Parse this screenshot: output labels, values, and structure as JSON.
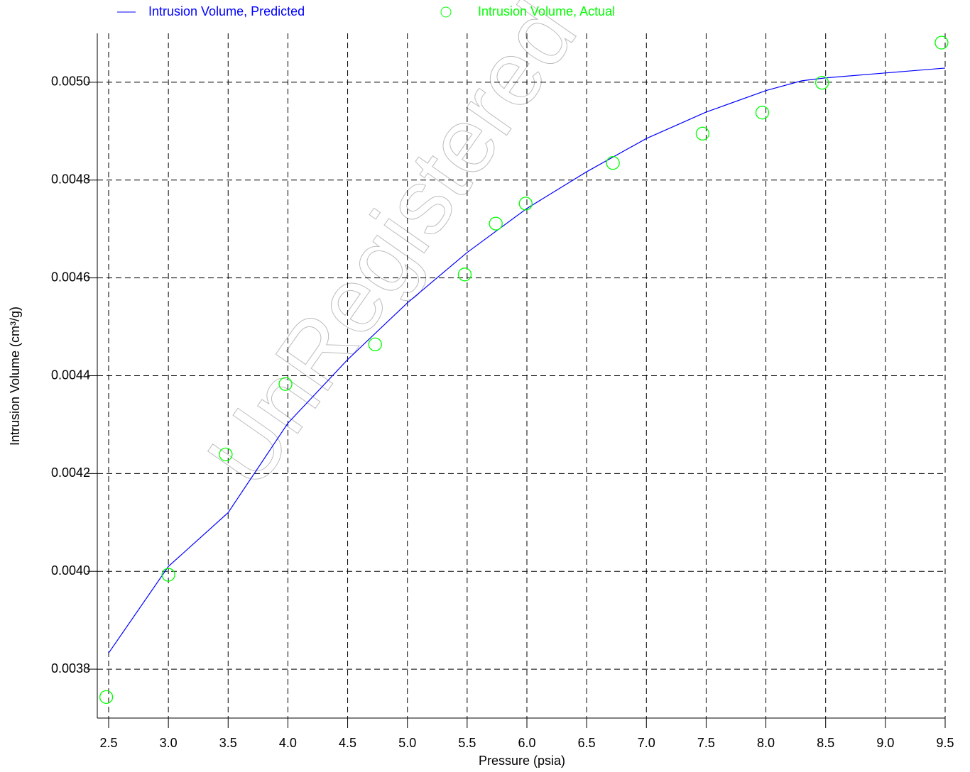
{
  "chart_data": {
    "type": "scatter",
    "watermark": "UnRegistered",
    "x_label": "Pressure (psia)",
    "y_label": "Intrusion Volume (cm³/g)",
    "xlim": [
      2.405,
      9.5
    ],
    "ylim": [
      0.0037,
      0.0051
    ],
    "xticks": [
      2.5,
      {
        "value": 3,
        "label": "3.0"
      },
      3.5,
      {
        "value": 4,
        "label": "4.0"
      },
      4.5,
      {
        "value": 5,
        "label": "5.0"
      },
      5.5,
      {
        "value": 6,
        "label": "6.0"
      },
      6.5,
      {
        "value": 7,
        "label": "7.0"
      },
      7.5,
      {
        "value": 8,
        "label": "8.0"
      },
      8.5,
      {
        "value": 9,
        "label": "9.0"
      },
      9.5
    ],
    "yticks": [
      0.0038,
      {
        "value": 0.004,
        "label": "0.0040"
      },
      0.0042,
      0.0044,
      0.0046,
      0.0048,
      {
        "value": 0.005,
        "label": "0.0050"
      }
    ],
    "grid": true,
    "series": [
      {
        "name": "Intrusion Volume, Predicted",
        "color": "#0000ff",
        "kind": "line",
        "x": [
          2.5,
          3.0,
          3.5,
          4.0,
          4.5,
          5.0,
          5.5,
          6.0,
          6.5,
          7.0,
          7.5,
          8.0,
          8.3,
          8.5,
          9.0,
          9.5
        ],
        "values": [
          0.003833,
          0.00401,
          0.00412,
          0.004303,
          0.004433,
          0.004549,
          0.004652,
          0.004742,
          0.004817,
          0.004885,
          0.004939,
          0.004983,
          0.005003,
          0.005009,
          0.005019,
          0.005029
        ]
      },
      {
        "name": "Intrusion Volume, Actual",
        "color": "#00ff00",
        "kind": "scatter",
        "x": [
          2.48,
          3.0,
          3.48,
          3.98,
          4.73,
          5.48,
          5.74,
          5.99,
          6.72,
          7.47,
          7.97,
          8.47,
          9.47
        ],
        "values": [
          0.003743,
          0.003993,
          0.004239,
          0.004383,
          0.004464,
          0.004607,
          0.004711,
          0.004752,
          0.004835,
          0.004895,
          0.004938,
          0.004999,
          0.005081
        ]
      }
    ]
  }
}
